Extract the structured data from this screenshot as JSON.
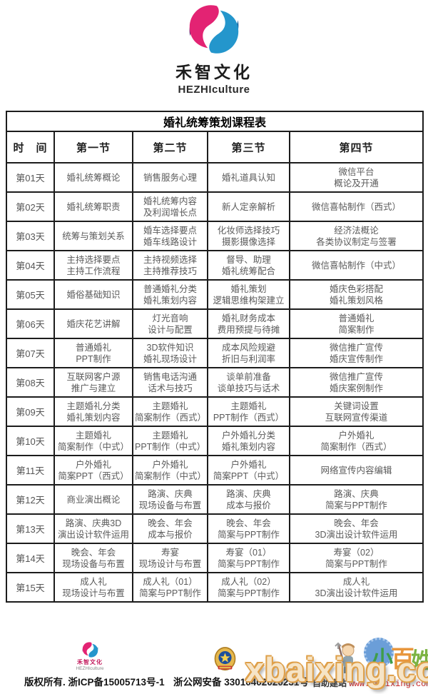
{
  "brand": {
    "name_cn": "禾智文化",
    "name_en": "HEZHIculture",
    "logo_colors": {
      "pink": "#e32373",
      "purple": "#5c2a70",
      "blue": "#2496cc",
      "dark_blue": "#135f9b"
    }
  },
  "table": {
    "title": "婚礼统筹策划课程表",
    "columns": [
      "时　间",
      "第一节",
      "第二节",
      "第三节",
      "第四节"
    ],
    "rows": [
      {
        "day": "第01天",
        "cells": [
          [
            "婚礼统筹概论"
          ],
          [
            "销售服务心理"
          ],
          [
            "婚礼道具认知"
          ],
          [
            "微信平台",
            "概论及开通"
          ]
        ]
      },
      {
        "day": "第02天",
        "cells": [
          [
            "婚礼统筹职责"
          ],
          [
            "婚礼统筹内容",
            "及利润增长点"
          ],
          [
            "新人定亲解析"
          ],
          [
            "微信喜帖制作（西式）"
          ]
        ]
      },
      {
        "day": "第03天",
        "cells": [
          [
            "统筹与策划关系"
          ],
          [
            "婚车选择要点",
            "婚车线路设计"
          ],
          [
            "化妆师选择技巧",
            "摄影摄像选择"
          ],
          [
            "经济法概论",
            "各类协议制定与签署"
          ]
        ]
      },
      {
        "day": "第04天",
        "cells": [
          [
            "主持选择要点",
            "主持工作流程"
          ],
          [
            "主持视频选择",
            "主持推荐技巧"
          ],
          [
            "督导、助理",
            "婚礼统筹配合"
          ],
          [
            "微信喜帖制作（中式）"
          ]
        ]
      },
      {
        "day": "第05天",
        "cells": [
          [
            "婚俗基础知识"
          ],
          [
            "普通婚礼分类",
            "婚礼策划内容"
          ],
          [
            "婚礼策划",
            "逻辑思维构架建立"
          ],
          [
            "婚庆色彩搭配",
            "婚礼策划风格"
          ]
        ]
      },
      {
        "day": "第06天",
        "cells": [
          [
            "婚庆花艺讲解"
          ],
          [
            "灯光音响",
            "设计与配置"
          ],
          [
            "婚礼财务成本",
            "费用预提与待摊"
          ],
          [
            "普通婚礼",
            "简案制作"
          ]
        ]
      },
      {
        "day": "第07天",
        "cells": [
          [
            "普通婚礼",
            "PPT制作"
          ],
          [
            "3D软件知识",
            "婚礼现场设计"
          ],
          [
            "成本风险规避",
            "折旧与利润率"
          ],
          [
            "微信推广宣传",
            "婚庆宣传制作"
          ]
        ]
      },
      {
        "day": "第08天",
        "cells": [
          [
            "互联网客户源",
            "推广与建立"
          ],
          [
            "销售电话沟通",
            "话术与技巧"
          ],
          [
            "谈单前准备",
            "谈单技巧与话术"
          ],
          [
            "微信推广宣传",
            "婚庆案例制作"
          ]
        ]
      },
      {
        "day": "第09天",
        "cells": [
          [
            "主题婚礼分类",
            "婚礼策划内容"
          ],
          [
            "主题婚礼",
            "简案制作（西式）"
          ],
          [
            "主题婚礼",
            "PPT制作（西式）"
          ],
          [
            "关键词设置",
            "互联网宣传渠道"
          ]
        ]
      },
      {
        "day": "第10天",
        "cells": [
          [
            "主题婚礼",
            "简案制作（中式）"
          ],
          [
            "主题婚礼",
            "PPT制作（中式）"
          ],
          [
            "户外婚礼分类",
            "婚礼策划内容"
          ],
          [
            "户外婚礼",
            "简案制作（西式）"
          ]
        ]
      },
      {
        "day": "第11天",
        "cells": [
          [
            "户外婚礼",
            "简案PPT（西式）"
          ],
          [
            "户外婚礼",
            "简案制作（中式）"
          ],
          [
            "户外婚礼",
            "简案PPT（中式）"
          ],
          [
            "网络宣传内容编辑"
          ]
        ]
      },
      {
        "day": "第12天",
        "cells": [
          [
            "商业演出概论"
          ],
          [
            "路演、庆典",
            "现场设备与布置"
          ],
          [
            "路演、庆典",
            "成本与报价"
          ],
          [
            "路演、庆典",
            "简案与PPT制作"
          ]
        ]
      },
      {
        "day": "第13天",
        "cells": [
          [
            "路演、庆典3D",
            "演出设计软件运用"
          ],
          [
            "晚会、年会",
            "成本与报价"
          ],
          [
            "晚会、年会",
            "简案与PPT制作"
          ],
          [
            "晚会、年会",
            "3D演出设计软件运用"
          ]
        ]
      },
      {
        "day": "第14天",
        "cells": [
          [
            "晚会、年会",
            "现场设备与布置"
          ],
          [
            "寿宴",
            "现场设计与布置"
          ],
          [
            "寿宴（01）",
            "简案与PPT制作"
          ],
          [
            "寿宴（02）",
            "简案与PPT制作"
          ]
        ]
      },
      {
        "day": "第15天",
        "cells": [
          [
            "成人礼",
            "现场设计与布置"
          ],
          [
            "成人礼（01）",
            "简案与PPT制作"
          ],
          [
            "成人礼（02）",
            "简案与PPT制作"
          ],
          [
            "成人礼",
            "3D演出设计软件运用"
          ]
        ]
      }
    ]
  },
  "footer": {
    "brand_cn": "禾智文化",
    "brand_en": "HEZHIculture",
    "copyright": "版权所有. 浙ICP备15005713号-1",
    "security_record": "浙公网安备 33010402020231号",
    "site_label": "自助建站",
    "site_url": "www.xbaixing.com",
    "mascot_chars": {
      "xiao": "小",
      "bai": "百",
      "xing": "姓"
    },
    "mascot_colors": {
      "flower_blue": "#6b9ed8",
      "xiao_green": "#3f9d4a",
      "bai_orange": "#e8963c",
      "xing_green": "#7cb342"
    },
    "url_color": "#cc2222"
  },
  "watermark": {
    "text": "xbaixing.com",
    "outline_color": "#dfa04a"
  }
}
